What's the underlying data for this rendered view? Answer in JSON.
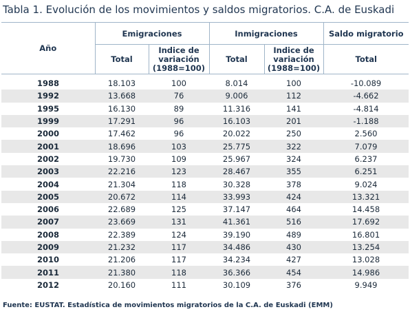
{
  "title": "Tabla 1. Evolución de los movimientos y saldos migratorios. C.A. de Euskadi",
  "headers": {
    "year": "Año",
    "emigraciones": "Emigraciones",
    "inmigraciones": "Inmigraciones",
    "saldo": "Saldo migratorio",
    "total": "Total",
    "indice_line1": "Indice de",
    "indice_line2": "variación",
    "indice_line3": "(1988=100)"
  },
  "rows": [
    {
      "year": "1988",
      "emi_total": "18.103",
      "emi_idx": "100",
      "inm_total": "8.014",
      "inm_idx": "100",
      "saldo": "-10.089"
    },
    {
      "year": "1992",
      "emi_total": "13.668",
      "emi_idx": "76",
      "inm_total": "9.006",
      "inm_idx": "112",
      "saldo": "-4.662"
    },
    {
      "year": "1995",
      "emi_total": "16.130",
      "emi_idx": "89",
      "inm_total": "11.316",
      "inm_idx": "141",
      "saldo": "-4.814"
    },
    {
      "year": "1999",
      "emi_total": "17.291",
      "emi_idx": "96",
      "inm_total": "16.103",
      "inm_idx": "201",
      "saldo": "-1.188"
    },
    {
      "year": "2000",
      "emi_total": "17.462",
      "emi_idx": "96",
      "inm_total": "20.022",
      "inm_idx": "250",
      "saldo": "2.560"
    },
    {
      "year": "2001",
      "emi_total": "18.696",
      "emi_idx": "103",
      "inm_total": "25.775",
      "inm_idx": "322",
      "saldo": "7.079"
    },
    {
      "year": "2002",
      "emi_total": "19.730",
      "emi_idx": "109",
      "inm_total": "25.967",
      "inm_idx": "324",
      "saldo": "6.237"
    },
    {
      "year": "2003",
      "emi_total": "22.216",
      "emi_idx": "123",
      "inm_total": "28.467",
      "inm_idx": "355",
      "saldo": "6.251"
    },
    {
      "year": "2004",
      "emi_total": "21.304",
      "emi_idx": "118",
      "inm_total": "30.328",
      "inm_idx": "378",
      "saldo": "9.024"
    },
    {
      "year": "2005",
      "emi_total": "20.672",
      "emi_idx": "114",
      "inm_total": "33.993",
      "inm_idx": "424",
      "saldo": "13.321"
    },
    {
      "year": "2006",
      "emi_total": "22.689",
      "emi_idx": "125",
      "inm_total": "37.147",
      "inm_idx": "464",
      "saldo": "14.458"
    },
    {
      "year": "2007",
      "emi_total": "23.669",
      "emi_idx": "131",
      "inm_total": "41.361",
      "inm_idx": "516",
      "saldo": "17.692"
    },
    {
      "year": "2008",
      "emi_total": "22.389",
      "emi_idx": "124",
      "inm_total": "39.190",
      "inm_idx": "489",
      "saldo": "16.801"
    },
    {
      "year": "2009",
      "emi_total": "21.232",
      "emi_idx": "117",
      "inm_total": "34.486",
      "inm_idx": "430",
      "saldo": "13.254"
    },
    {
      "year": "2010",
      "emi_total": "21.206",
      "emi_idx": "117",
      "inm_total": "34.234",
      "inm_idx": "427",
      "saldo": "13.028"
    },
    {
      "year": "2011",
      "emi_total": "21.380",
      "emi_idx": "118",
      "inm_total": "36.366",
      "inm_idx": "454",
      "saldo": "14.986"
    },
    {
      "year": "2012",
      "emi_total": "20.160",
      "emi_idx": "111",
      "inm_total": "30.109",
      "inm_idx": "376",
      "saldo": "9.949"
    }
  ],
  "footer": "Fuente: EUSTAT. Estadística de movimientos migratorios de la C.A. de Euskadi (EMM)"
}
